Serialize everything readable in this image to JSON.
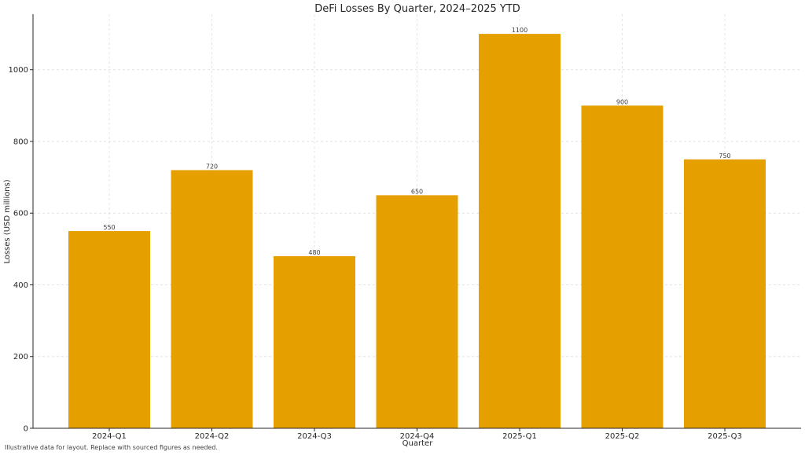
{
  "chart_data": {
    "type": "bar",
    "title": "DeFi Losses By Quarter, 2024–2025 YTD",
    "xlabel": "Quarter",
    "ylabel": "Losses (USD millions)",
    "categories": [
      "2024-Q1",
      "2024-Q2",
      "2024-Q3",
      "2024-Q4",
      "2025-Q1",
      "2025-Q2",
      "2025-Q3"
    ],
    "values": [
      550,
      720,
      480,
      650,
      1100,
      900,
      750
    ],
    "data_labels": [
      "550",
      "720",
      "480",
      "650",
      "1100",
      "900",
      "750"
    ],
    "ylim": [
      0,
      1155
    ],
    "yticks": [
      0,
      200,
      400,
      600,
      800,
      1000
    ],
    "grid": true,
    "bar_color": "#E5A000"
  },
  "footnote": "Illustrative data for layout. Replace with sourced figures as needed."
}
